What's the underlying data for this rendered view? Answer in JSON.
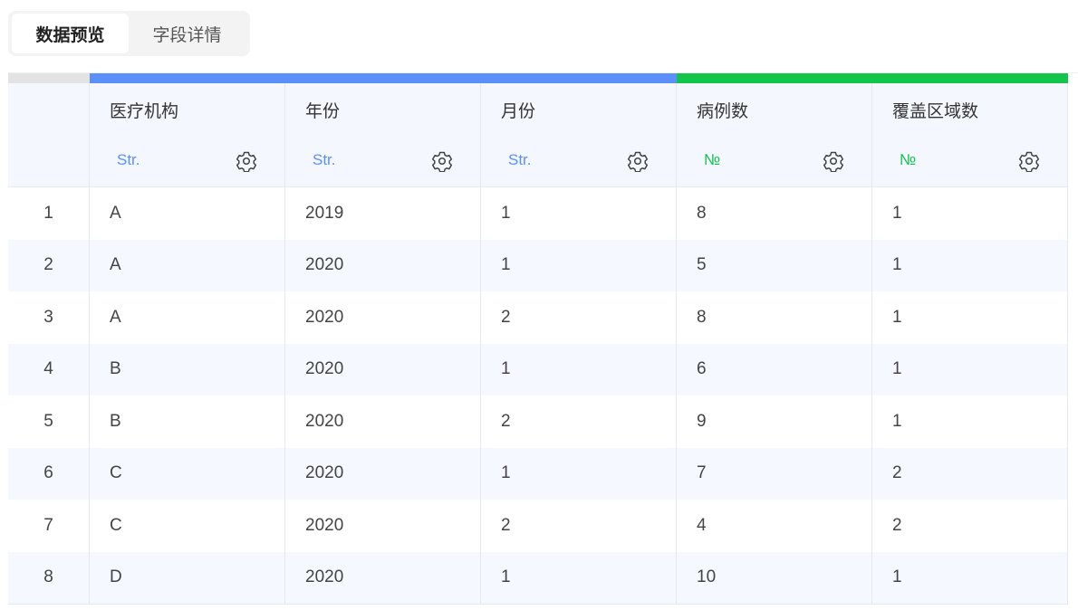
{
  "tabs": [
    {
      "label": "数据预览",
      "active": true
    },
    {
      "label": "字段详情",
      "active": false
    }
  ],
  "colors": {
    "string_type": "#5b8ff9",
    "number_type": "#13c44a",
    "index_bar": "#e3e3e3"
  },
  "columns": [
    {
      "name": "医疗机构",
      "type": "Str.",
      "kind": "string"
    },
    {
      "name": "年份",
      "type": "Str.",
      "kind": "string"
    },
    {
      "name": "月份",
      "type": "Str.",
      "kind": "string"
    },
    {
      "name": "病例数",
      "type": "№",
      "kind": "number"
    },
    {
      "name": "覆盖区域数",
      "type": "№",
      "kind": "number"
    }
  ],
  "rows": [
    {
      "index": "1",
      "cells": [
        "A",
        "2019",
        "1",
        "8",
        "1"
      ]
    },
    {
      "index": "2",
      "cells": [
        "A",
        "2020",
        "1",
        "5",
        "1"
      ]
    },
    {
      "index": "3",
      "cells": [
        "A",
        "2020",
        "2",
        "8",
        "1"
      ]
    },
    {
      "index": "4",
      "cells": [
        "B",
        "2020",
        "1",
        "6",
        "1"
      ]
    },
    {
      "index": "5",
      "cells": [
        "B",
        "2020",
        "2",
        "9",
        "1"
      ]
    },
    {
      "index": "6",
      "cells": [
        "C",
        "2020",
        "1",
        "7",
        "2"
      ]
    },
    {
      "index": "7",
      "cells": [
        "C",
        "2020",
        "2",
        "4",
        "2"
      ]
    },
    {
      "index": "8",
      "cells": [
        "D",
        "2020",
        "1",
        "10",
        "1"
      ]
    }
  ]
}
